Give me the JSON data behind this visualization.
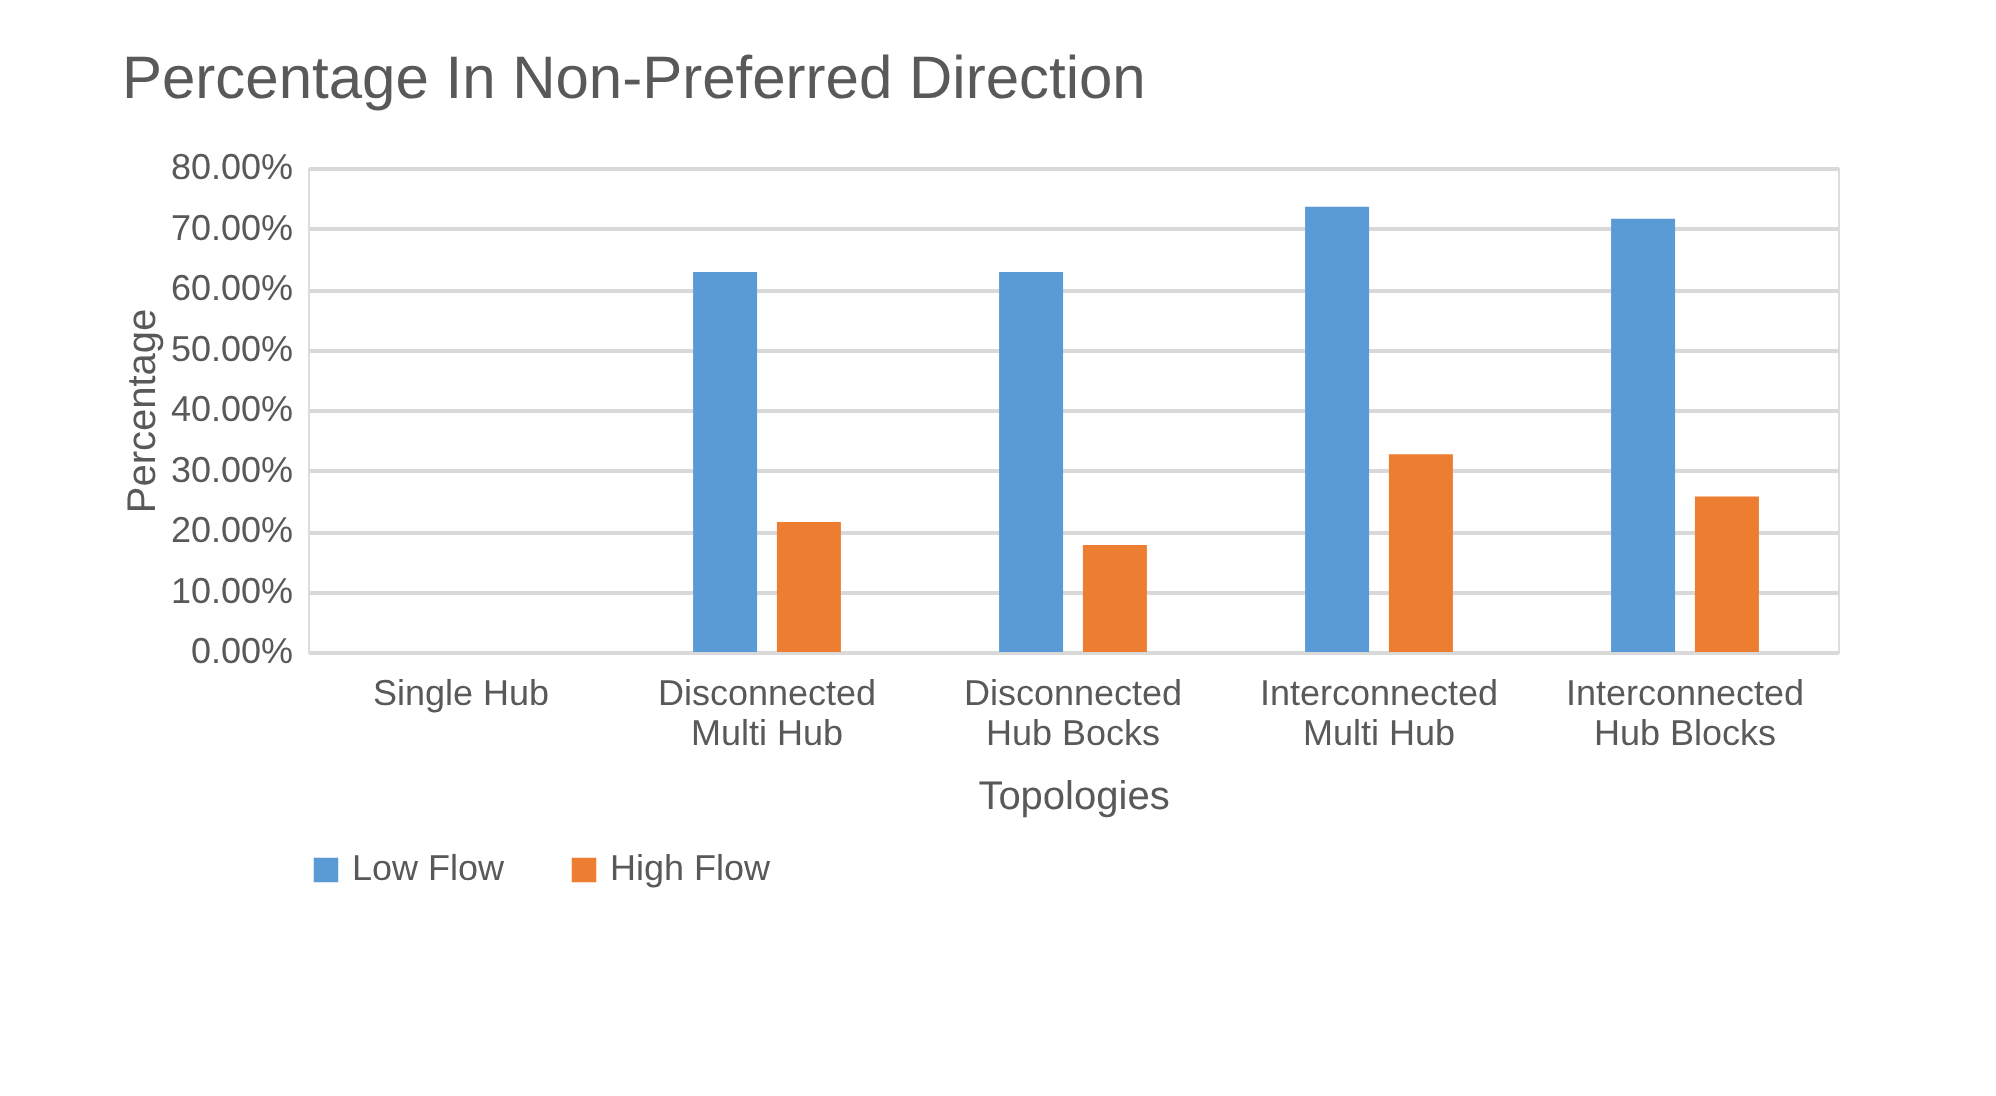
{
  "chart_data": {
    "type": "bar",
    "title": "Percentage In Non-Preferred Direction",
    "xlabel": "Topologies",
    "ylabel": "Percentage",
    "categories": [
      "Single Hub",
      "Disconnected Multi Hub",
      "Disconnected Hub Bocks",
      "Interconnected Multi Hub",
      "Interconnected Hub Blocks"
    ],
    "series": [
      {
        "name": "Low Flow",
        "color": "#5b9bd5",
        "values": [
          0,
          62.8,
          62.8,
          73.6,
          71.6
        ]
      },
      {
        "name": "High Flow",
        "color": "#ed7d31",
        "values": [
          0,
          21.5,
          17.7,
          32.7,
          25.7
        ]
      }
    ],
    "ylim": [
      0,
      80
    ],
    "yticks": [
      {
        "value": 0,
        "label": "0.00%"
      },
      {
        "value": 10,
        "label": "10.00%"
      },
      {
        "value": 20,
        "label": "20.00%"
      },
      {
        "value": 30,
        "label": "30.00%"
      },
      {
        "value": 40,
        "label": "40.00%"
      },
      {
        "value": 50,
        "label": "50.00%"
      },
      {
        "value": 60,
        "label": "60.00%"
      },
      {
        "value": 70,
        "label": "70.00%"
      },
      {
        "value": 80,
        "label": "80.00%"
      }
    ],
    "grid": "y",
    "legend": "bottom"
  }
}
